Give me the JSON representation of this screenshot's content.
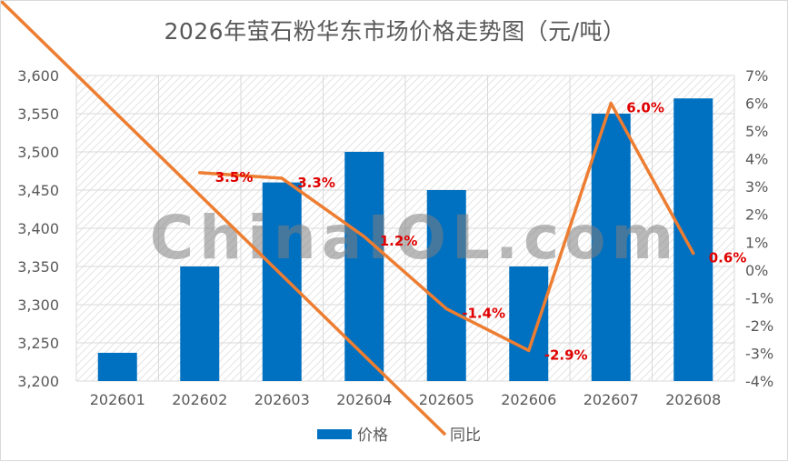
{
  "title": "2026年萤石粉华东市场价格走势图（元/吨）",
  "watermark": "ChinaIOL.com",
  "legend": {
    "bar": "价格",
    "line": "同比"
  },
  "colors": {
    "bar": "#0070c0",
    "line": "#ed7d31",
    "label": "#e00000",
    "grid": "#d9d9d9",
    "text": "#595959"
  },
  "chart_data": {
    "type": "bar+line",
    "categories": [
      "202601",
      "202602",
      "202603",
      "202604",
      "202605",
      "202606",
      "202607",
      "202608"
    ],
    "series": [
      {
        "name": "价格",
        "type": "bar",
        "axis": "left",
        "values": [
          3237,
          3350,
          3460,
          3500,
          3450,
          3350,
          3550,
          3570
        ]
      },
      {
        "name": "同比",
        "type": "line",
        "axis": "right",
        "values": [
          null,
          3.5,
          3.3,
          1.2,
          -1.4,
          -2.9,
          6.0,
          0.6
        ],
        "labels": [
          "",
          "3.5%",
          "3.3%",
          "1.2%",
          "-1.4%",
          "-2.9%",
          "6.0%",
          "0.6%"
        ]
      }
    ],
    "ylim_left": [
      3200,
      3600
    ],
    "yticks_left": [
      "3,200",
      "3,250",
      "3,300",
      "3,350",
      "3,400",
      "3,450",
      "3,500",
      "3,550",
      "3,600"
    ],
    "ylim_right": [
      -4,
      7
    ],
    "yticks_right": [
      "-4%",
      "-3%",
      "-2%",
      "-1%",
      "0%",
      "1%",
      "2%",
      "3%",
      "4%",
      "5%",
      "6%",
      "7%"
    ],
    "grid": true,
    "legend_position": "bottom"
  }
}
